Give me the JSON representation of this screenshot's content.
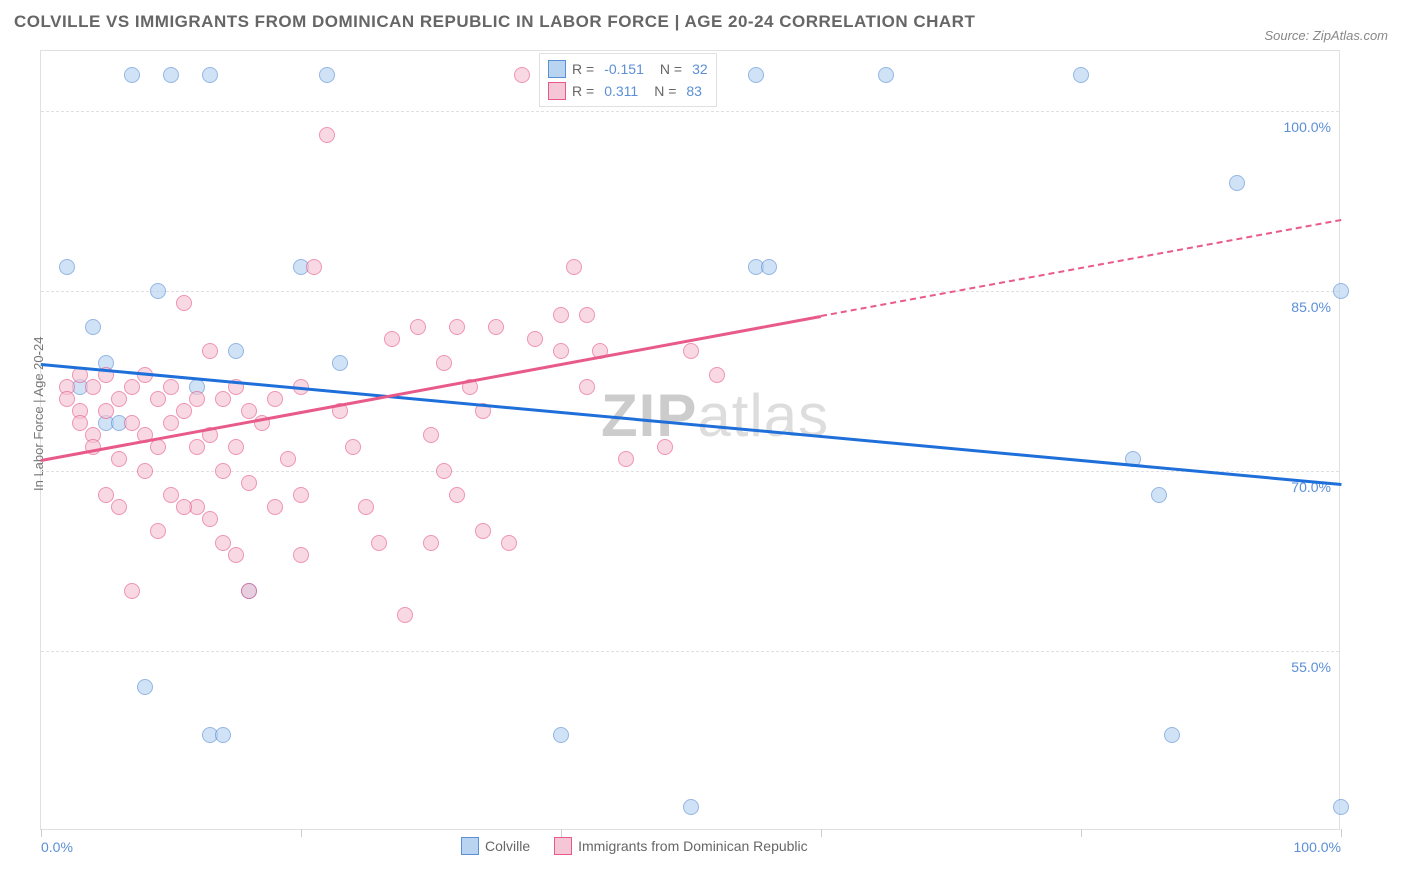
{
  "title": "COLVILLE VS IMMIGRANTS FROM DOMINICAN REPUBLIC IN LABOR FORCE | AGE 20-24 CORRELATION CHART",
  "source": "Source: ZipAtlas.com",
  "y_axis_label": "In Labor Force | Age 20-24",
  "watermark_a": "ZIP",
  "watermark_b": "atlas",
  "chart": {
    "type": "scatter",
    "xlim": [
      0,
      100
    ],
    "ylim": [
      40,
      105
    ],
    "y_ticks": [
      55.0,
      70.0,
      85.0,
      100.0
    ],
    "y_tick_labels": [
      "55.0%",
      "70.0%",
      "85.0%",
      "100.0%"
    ],
    "x_ticks": [
      0,
      20,
      40,
      60,
      80,
      100
    ],
    "x_tick_labels": {
      "0": "0.0%",
      "100": "100.0%"
    },
    "background_color": "#ffffff",
    "grid_color": "#e0e0e0",
    "series": [
      {
        "name": "Colville",
        "color_fill": "#b8d4f0",
        "color_stroke": "#5b8fd6",
        "R": "-0.151",
        "N": "32",
        "trend": {
          "color": "#1e6fd9",
          "x1": 0,
          "y1": 79,
          "x2": 100,
          "y2": 69,
          "dash_from_x": null
        },
        "points": [
          [
            2,
            87
          ],
          [
            7,
            103
          ],
          [
            9,
            85
          ],
          [
            10,
            103
          ],
          [
            13,
            103
          ],
          [
            16,
            60
          ],
          [
            20,
            87
          ],
          [
            22,
            103
          ],
          [
            4,
            82
          ],
          [
            5,
            79
          ],
          [
            5,
            74
          ],
          [
            6,
            74
          ],
          [
            23,
            79
          ],
          [
            8,
            52
          ],
          [
            13,
            48
          ],
          [
            14,
            48
          ],
          [
            40,
            48
          ],
          [
            50,
            42
          ],
          [
            55,
            87
          ],
          [
            56,
            87
          ],
          [
            55,
            103
          ],
          [
            65,
            103
          ],
          [
            80,
            103
          ],
          [
            84,
            71
          ],
          [
            86,
            68
          ],
          [
            87,
            48
          ],
          [
            92,
            94
          ],
          [
            100,
            85
          ],
          [
            100,
            42
          ],
          [
            3,
            77
          ],
          [
            15,
            80
          ],
          [
            12,
            77
          ]
        ]
      },
      {
        "name": "Immigrants from Dominican Republic",
        "color_fill": "#f5c6d5",
        "color_stroke": "#e85a8a",
        "R": "0.311",
        "N": "83",
        "trend": {
          "color": "#e85a8a",
          "x1": 0,
          "y1": 71,
          "x2": 100,
          "y2": 91,
          "dash_from_x": 60
        },
        "points": [
          [
            2,
            77
          ],
          [
            2,
            76
          ],
          [
            3,
            78
          ],
          [
            3,
            75
          ],
          [
            3,
            74
          ],
          [
            4,
            77
          ],
          [
            4,
            73
          ],
          [
            4,
            72
          ],
          [
            5,
            78
          ],
          [
            5,
            75
          ],
          [
            5,
            68
          ],
          [
            6,
            76
          ],
          [
            6,
            71
          ],
          [
            6,
            67
          ],
          [
            7,
            77
          ],
          [
            7,
            74
          ],
          [
            7,
            60
          ],
          [
            8,
            78
          ],
          [
            8,
            73
          ],
          [
            8,
            70
          ],
          [
            9,
            76
          ],
          [
            9,
            72
          ],
          [
            9,
            65
          ],
          [
            10,
            77
          ],
          [
            10,
            74
          ],
          [
            10,
            68
          ],
          [
            11,
            75
          ],
          [
            11,
            84
          ],
          [
            12,
            76
          ],
          [
            12,
            72
          ],
          [
            12,
            67
          ],
          [
            13,
            80
          ],
          [
            13,
            73
          ],
          [
            14,
            76
          ],
          [
            14,
            70
          ],
          [
            14,
            64
          ],
          [
            15,
            77
          ],
          [
            15,
            72
          ],
          [
            15,
            63
          ],
          [
            16,
            75
          ],
          [
            16,
            69
          ],
          [
            17,
            74
          ],
          [
            18,
            76
          ],
          [
            18,
            67
          ],
          [
            19,
            71
          ],
          [
            20,
            63
          ],
          [
            20,
            68
          ],
          [
            21,
            87
          ],
          [
            22,
            98
          ],
          [
            23,
            75
          ],
          [
            24,
            72
          ],
          [
            25,
            67
          ],
          [
            26,
            64
          ],
          [
            27,
            81
          ],
          [
            28,
            58
          ],
          [
            29,
            82
          ],
          [
            30,
            73
          ],
          [
            30,
            64
          ],
          [
            31,
            79
          ],
          [
            31,
            70
          ],
          [
            32,
            82
          ],
          [
            32,
            68
          ],
          [
            33,
            77
          ],
          [
            34,
            75
          ],
          [
            34,
            65
          ],
          [
            35,
            82
          ],
          [
            36,
            64
          ],
          [
            37,
            103
          ],
          [
            38,
            81
          ],
          [
            40,
            83
          ],
          [
            40,
            80
          ],
          [
            41,
            87
          ],
          [
            42,
            83
          ],
          [
            42,
            77
          ],
          [
            43,
            80
          ],
          [
            45,
            71
          ],
          [
            48,
            72
          ],
          [
            50,
            80
          ],
          [
            52,
            78
          ],
          [
            11,
            67
          ],
          [
            13,
            66
          ],
          [
            16,
            60
          ],
          [
            20,
            77
          ]
        ]
      }
    ]
  },
  "legend_top": {
    "rows": [
      {
        "swatch_fill": "#b8d4f0",
        "swatch_stroke": "#5b8fd6",
        "r": "-0.151",
        "n": "32"
      },
      {
        "swatch_fill": "#f5c6d5",
        "swatch_stroke": "#e85a8a",
        "r": "0.311",
        "n": "83"
      }
    ],
    "r_label": "R =",
    "n_label": "N ="
  },
  "legend_bottom": [
    {
      "swatch_fill": "#b8d4f0",
      "swatch_stroke": "#5b8fd6",
      "label": "Colville"
    },
    {
      "swatch_fill": "#f5c6d5",
      "swatch_stroke": "#e85a8a",
      "label": "Immigrants from Dominican Republic"
    }
  ]
}
